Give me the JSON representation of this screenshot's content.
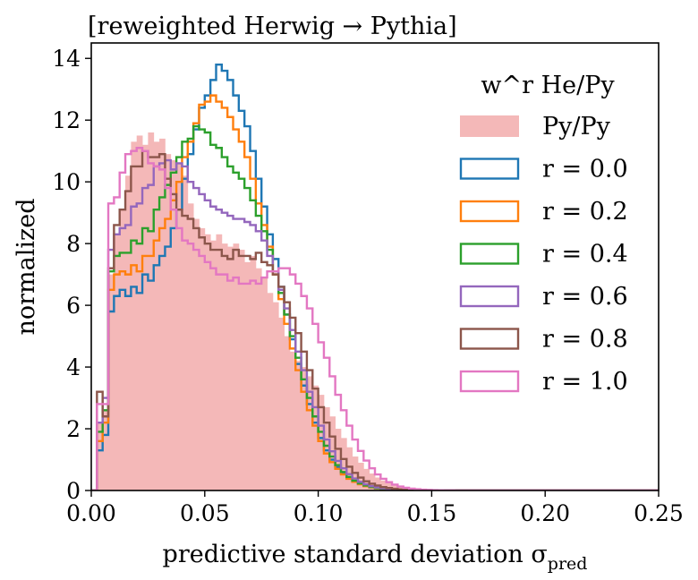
{
  "chart_data": {
    "type": "histogram",
    "title": "[reweighted Herwig → Pythia]",
    "xlabel": "predictive standard deviation σ",
    "xlabel_subscript": "pred",
    "ylabel": "normalized",
    "xlim": [
      0.0,
      0.25
    ],
    "ylim": [
      0,
      14.5
    ],
    "xticks": [
      0.0,
      0.05,
      0.1,
      0.15,
      0.2,
      0.25
    ],
    "xtick_labels": [
      "0.00",
      "0.05",
      "0.10",
      "0.15",
      "0.20",
      "0.25"
    ],
    "yticks": [
      0,
      2,
      4,
      6,
      8,
      10,
      12,
      14
    ],
    "ytick_labels": [
      "0",
      "2",
      "4",
      "6",
      "8",
      "10",
      "12",
      "14"
    ],
    "bin_width": 0.0025,
    "bins_start": 0.0,
    "legend_title": "w^r He/Py",
    "legend_position": "upper right",
    "series": [
      {
        "name": "Py/Py",
        "style": "filled",
        "color": "#f4b8b8",
        "values": [
          0.0,
          2.2,
          2.6,
          7.0,
          8.3,
          9.1,
          10.2,
          11.3,
          11.5,
          11.2,
          11.6,
          11.3,
          11.4,
          10.9,
          10.7,
          10.6,
          10.2,
          9.3,
          8.8,
          8.5,
          8.3,
          8.1,
          8.3,
          8.0,
          7.9,
          8.0,
          7.8,
          7.4,
          7.6,
          7.2,
          6.9,
          6.4,
          6.1,
          5.6,
          5.0,
          4.5,
          4.2,
          4.0,
          3.7,
          3.4,
          3.1,
          2.7,
          2.4,
          2.0,
          1.7,
          1.4,
          1.1,
          0.9,
          0.7,
          0.55,
          0.42,
          0.32,
          0.25,
          0.19,
          0.14,
          0.1,
          0.08,
          0.06,
          0.04,
          0.03,
          0.02,
          0.015,
          0.01,
          0.008,
          0.006,
          0.005,
          0.004,
          0.003,
          0.002,
          0.002,
          0.001,
          0.001,
          0.001,
          0.0,
          0.0,
          0.0,
          0.0,
          0.0,
          0.0,
          0.0,
          0.0,
          0.0,
          0.0,
          0.0,
          0.0,
          0.0,
          0.0,
          0.0,
          0.0,
          0.0,
          0.0,
          0.0,
          0.0,
          0.0,
          0.0,
          0.0,
          0.0,
          0.0,
          0.0,
          0.0
        ]
      },
      {
        "name": "r = 0.0",
        "style": "step",
        "color": "#1f77b4",
        "values": [
          0.0,
          1.3,
          1.8,
          5.8,
          6.3,
          6.5,
          6.3,
          6.6,
          6.4,
          7.0,
          6.8,
          7.3,
          7.6,
          7.9,
          8.5,
          9.1,
          10.1,
          10.9,
          11.7,
          12.4,
          12.8,
          13.3,
          13.8,
          13.6,
          13.3,
          12.8,
          12.3,
          11.8,
          11.0,
          10.1,
          9.2,
          8.3,
          7.5,
          6.6,
          5.7,
          4.9,
          4.1,
          3.4,
          2.8,
          2.2,
          1.7,
          1.3,
          1.0,
          0.75,
          0.55,
          0.4,
          0.3,
          0.22,
          0.15,
          0.11,
          0.08,
          0.05,
          0.035,
          0.025,
          0.018,
          0.012,
          0.008,
          0.005,
          0.003,
          0.002,
          0.001,
          0.001,
          0.0,
          0.0,
          0.0,
          0.0,
          0.0,
          0.0,
          0.0,
          0.0,
          0.0,
          0.0,
          0.0,
          0.0,
          0.0,
          0.0,
          0.0,
          0.0,
          0.0,
          0.0,
          0.0,
          0.0,
          0.0,
          0.0,
          0.0,
          0.0,
          0.0,
          0.0,
          0.0,
          0.0,
          0.0,
          0.0,
          0.0,
          0.0,
          0.0,
          0.0,
          0.0,
          0.0,
          0.0,
          0.0
        ]
      },
      {
        "name": "r = 0.2",
        "style": "step",
        "color": "#ff7f0e",
        "values": [
          0.0,
          1.6,
          2.2,
          6.5,
          7.0,
          7.1,
          7.0,
          7.3,
          7.1,
          7.6,
          7.6,
          8.1,
          8.5,
          8.8,
          9.4,
          10.0,
          10.8,
          11.3,
          11.9,
          12.5,
          12.6,
          12.8,
          12.6,
          12.4,
          12.1,
          11.7,
          11.3,
          10.8,
          10.1,
          9.3,
          8.6,
          7.9,
          7.0,
          6.2,
          5.4,
          4.6,
          3.9,
          3.2,
          2.6,
          2.1,
          1.6,
          1.2,
          0.92,
          0.7,
          0.52,
          0.38,
          0.28,
          0.2,
          0.14,
          0.1,
          0.07,
          0.05,
          0.035,
          0.024,
          0.016,
          0.011,
          0.007,
          0.005,
          0.003,
          0.002,
          0.001,
          0.001,
          0.0,
          0.0,
          0.0,
          0.0,
          0.0,
          0.0,
          0.0,
          0.0,
          0.0,
          0.0,
          0.0,
          0.0,
          0.0,
          0.0,
          0.0,
          0.0,
          0.0,
          0.0,
          0.0,
          0.0,
          0.0,
          0.0,
          0.0,
          0.0,
          0.0,
          0.0,
          0.0,
          0.0,
          0.0,
          0.0,
          0.0,
          0.0,
          0.0,
          0.0,
          0.0,
          0.0,
          0.0,
          0.0
        ]
      },
      {
        "name": "r = 0.4",
        "style": "step",
        "color": "#2ca02c",
        "values": [
          0.0,
          1.9,
          2.6,
          7.1,
          7.6,
          7.7,
          7.7,
          8.1,
          8.0,
          8.5,
          8.4,
          9.1,
          9.5,
          9.9,
          10.3,
          10.8,
          11.3,
          11.4,
          11.8,
          11.7,
          11.6,
          11.2,
          11.1,
          10.8,
          10.5,
          10.3,
          10.1,
          9.8,
          9.4,
          8.9,
          8.4,
          7.8,
          7.1,
          6.4,
          5.7,
          5.0,
          4.3,
          3.6,
          3.0,
          2.4,
          1.9,
          1.45,
          1.1,
          0.82,
          0.6,
          0.44,
          0.32,
          0.23,
          0.16,
          0.11,
          0.08,
          0.055,
          0.038,
          0.026,
          0.018,
          0.012,
          0.008,
          0.005,
          0.003,
          0.002,
          0.001,
          0.001,
          0.0,
          0.0,
          0.0,
          0.0,
          0.0,
          0.0,
          0.0,
          0.0,
          0.0,
          0.0,
          0.0,
          0.0,
          0.0,
          0.0,
          0.0,
          0.0,
          0.0,
          0.0,
          0.0,
          0.0,
          0.0,
          0.0,
          0.0,
          0.0,
          0.0,
          0.0,
          0.0,
          0.0,
          0.0,
          0.0,
          0.0,
          0.0,
          0.0,
          0.0,
          0.0,
          0.0,
          0.0,
          0.0
        ]
      },
      {
        "name": "r = 0.6",
        "style": "step",
        "color": "#9467bd",
        "values": [
          0.0,
          2.2,
          3.0,
          7.8,
          8.3,
          8.5,
          8.6,
          9.2,
          9.3,
          9.8,
          9.9,
          10.5,
          10.6,
          10.7,
          10.4,
          10.6,
          10.5,
          10.0,
          9.8,
          9.6,
          9.4,
          9.2,
          9.1,
          9.0,
          8.9,
          8.8,
          8.8,
          8.7,
          8.6,
          8.4,
          8.1,
          7.6,
          7.1,
          6.5,
          5.9,
          5.2,
          4.5,
          3.9,
          3.2,
          2.7,
          2.1,
          1.65,
          1.27,
          0.96,
          0.72,
          0.53,
          0.39,
          0.28,
          0.2,
          0.14,
          0.1,
          0.07,
          0.05,
          0.034,
          0.023,
          0.015,
          0.01,
          0.007,
          0.004,
          0.003,
          0.002,
          0.001,
          0.0,
          0.0,
          0.0,
          0.0,
          0.0,
          0.0,
          0.0,
          0.0,
          0.0,
          0.0,
          0.0,
          0.0,
          0.0,
          0.0,
          0.0,
          0.0,
          0.0,
          0.0,
          0.0,
          0.0,
          0.0,
          0.0,
          0.0,
          0.0,
          0.0,
          0.0,
          0.0,
          0.0,
          0.0,
          0.0,
          0.0,
          0.0,
          0.0,
          0.0,
          0.0,
          0.0,
          0.0,
          0.0
        ]
      },
      {
        "name": "r = 0.8",
        "style": "step",
        "color": "#8c564b",
        "values": [
          0.0,
          3.2,
          2.4,
          7.2,
          8.6,
          9.1,
          9.7,
          10.5,
          10.5,
          11.0,
          10.8,
          10.8,
          10.9,
          10.1,
          9.6,
          9.1,
          8.9,
          8.8,
          8.5,
          8.2,
          8.0,
          7.8,
          7.8,
          7.6,
          7.5,
          7.8,
          7.6,
          7.6,
          7.5,
          7.7,
          7.4,
          7.3,
          7.0,
          6.6,
          6.1,
          5.6,
          5.1,
          4.5,
          3.9,
          3.3,
          2.7,
          2.2,
          1.75,
          1.35,
          1.02,
          0.77,
          0.57,
          0.42,
          0.3,
          0.22,
          0.16,
          0.11,
          0.08,
          0.055,
          0.038,
          0.026,
          0.018,
          0.012,
          0.008,
          0.005,
          0.003,
          0.002,
          0.001,
          0.001,
          0.0,
          0.0,
          0.0,
          0.0,
          0.0,
          0.0,
          0.0,
          0.0,
          0.0,
          0.0,
          0.0,
          0.0,
          0.0,
          0.0,
          0.0,
          0.0,
          0.0,
          0.0,
          0.0,
          0.0,
          0.0,
          0.0,
          0.0,
          0.0,
          0.0,
          0.0,
          0.0,
          0.0,
          0.0,
          0.0,
          0.0,
          0.0,
          0.0,
          0.0,
          0.0,
          0.0
        ]
      },
      {
        "name": "r = 1.0",
        "style": "step",
        "color": "#e377c2",
        "values": [
          0.0,
          2.8,
          2.8,
          9.3,
          9.5,
          10.3,
          10.9,
          11.0,
          11.1,
          11.0,
          10.6,
          10.5,
          10.4,
          9.8,
          9.1,
          8.5,
          8.1,
          8.0,
          7.8,
          7.6,
          7.4,
          7.2,
          7.0,
          7.0,
          6.8,
          6.9,
          6.7,
          6.7,
          6.8,
          6.7,
          6.9,
          7.1,
          7.1,
          7.2,
          7.2,
          7.0,
          6.7,
          6.3,
          5.9,
          5.4,
          4.8,
          4.3,
          3.7,
          3.1,
          2.6,
          2.1,
          1.65,
          1.28,
          0.97,
          0.72,
          0.52,
          0.38,
          0.27,
          0.19,
          0.13,
          0.09,
          0.06,
          0.04,
          0.028,
          0.019,
          0.013,
          0.009,
          0.006,
          0.004,
          0.003,
          0.002,
          0.001,
          0.001,
          0.0,
          0.0,
          0.0,
          0.0,
          0.0,
          0.0,
          0.0,
          0.0,
          0.0,
          0.0,
          0.0,
          0.0,
          0.0,
          0.0,
          0.0,
          0.0,
          0.0,
          0.0,
          0.0,
          0.0,
          0.0,
          0.0,
          0.0,
          0.0,
          0.0,
          0.0,
          0.0,
          0.0,
          0.0,
          0.0,
          0.0,
          0.0
        ]
      }
    ]
  }
}
